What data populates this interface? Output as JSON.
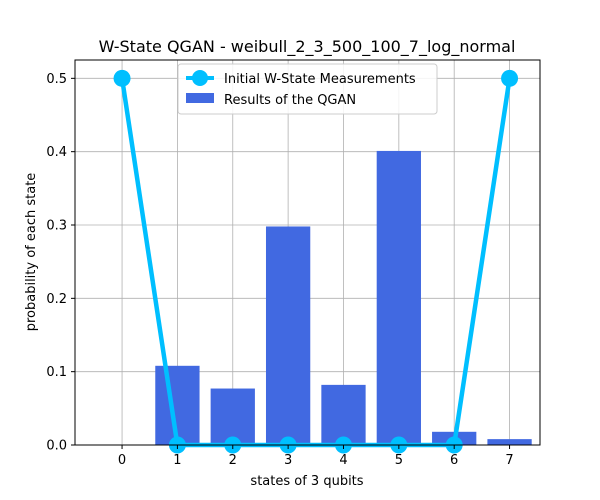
{
  "chart_data": {
    "type": "bar",
    "title": "W-State QGAN - weibull_2_3_500_100_7_log_normal",
    "xlabel": "states of 3 qubits",
    "ylabel": "probability of each state",
    "categories": [
      "0",
      "1",
      "2",
      "3",
      "4",
      "5",
      "6",
      "7"
    ],
    "x": [
      0,
      1,
      2,
      3,
      4,
      5,
      6,
      7
    ],
    "xlim": [
      -0.85,
      7.55
    ],
    "ylim": [
      0,
      0.525
    ],
    "yticks": [
      0.0,
      0.1,
      0.2,
      0.3,
      0.4,
      0.5
    ],
    "ytick_labels": [
      "0.0",
      "0.1",
      "0.2",
      "0.3",
      "0.4",
      "0.5"
    ],
    "grid": true,
    "legend_position": "top-center",
    "series": [
      {
        "name": "Initial W-State Measurements",
        "kind": "line",
        "color": "#00bfff",
        "values": [
          0.5,
          0.0,
          0.0,
          0.0,
          0.0,
          0.0,
          0.0,
          0.5
        ]
      },
      {
        "name": "Results of the QGAN",
        "kind": "bar",
        "color": "#4169e1",
        "values": [
          0.0,
          0.108,
          0.077,
          0.298,
          0.082,
          0.401,
          0.018,
          0.008
        ]
      }
    ]
  }
}
